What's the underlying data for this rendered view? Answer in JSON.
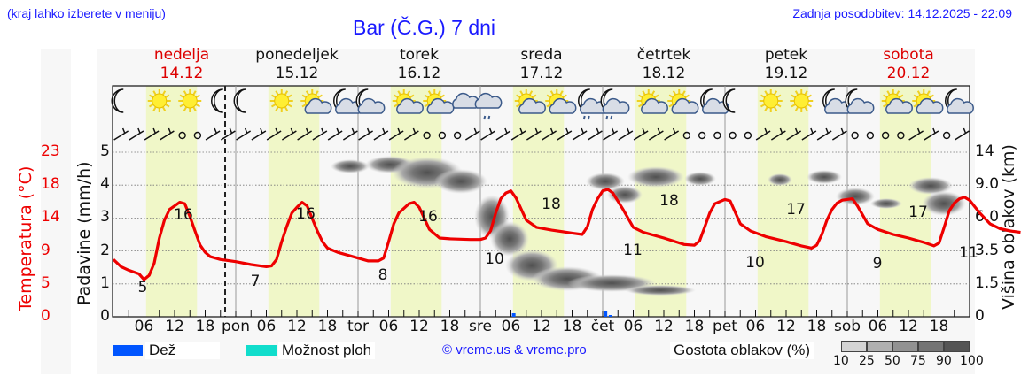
{
  "header": {
    "region_note": "(kraj lahko izberete v meniju)",
    "title": "Bar (Č.G.) 7 dni",
    "last_update": "Zadnja posodobitev: 14.12.2025 - 22:09"
  },
  "days": [
    {
      "name": "nedelja",
      "date": "14.12",
      "weekend": true
    },
    {
      "name": "ponedeljek",
      "date": "15.12",
      "weekend": false
    },
    {
      "name": "torek",
      "date": "16.12",
      "weekend": false
    },
    {
      "name": "sreda",
      "date": "17.12",
      "weekend": false
    },
    {
      "name": "četrtek",
      "date": "18.12",
      "weekend": false
    },
    {
      "name": "petek",
      "date": "19.12",
      "weekend": false
    },
    {
      "name": "sobota",
      "date": "20.12",
      "weekend": true
    }
  ],
  "axes": {
    "temp_label": "Temperatura (°C)",
    "temp_ticks": [
      "0",
      "5",
      "9",
      "14",
      "18",
      "23"
    ],
    "rain_label": "Padavine (mm/h)",
    "rain_ticks": [
      "0",
      "1",
      "2",
      "3",
      "4",
      "5"
    ],
    "cloud_label": "Višina oblakov (km)",
    "cloud_ticks": [
      "0",
      "1.5",
      "3.5",
      "6.0",
      "9.0",
      "14"
    ],
    "x_ticks": [
      "06",
      "12",
      "18",
      "pon",
      "06",
      "12",
      "18",
      "tor",
      "06",
      "12",
      "18",
      "sre",
      "06",
      "12",
      "18",
      "čet",
      "06",
      "12",
      "18",
      "pet",
      "06",
      "12",
      "18",
      "sob",
      "06",
      "12",
      "18"
    ]
  },
  "weather_icons": [
    "moon",
    "sun",
    "sun",
    "moon",
    "moon",
    "sun",
    "sun-cloud",
    "moon-cloud",
    "moon-cloud",
    "sun-cloud",
    "sun-cloud",
    "cloud",
    "cloud-rain",
    "sun-cloud",
    "sun-cloud",
    "moon-cloud-rain",
    "moon-cloud-rain",
    "sun-cloud",
    "sun-cloud",
    "moon-cloud",
    "moon",
    "sun",
    "sun",
    "moon-cloud",
    "moon-cloud",
    "sun-cloud",
    "sun-cloud",
    "moon-cloud"
  ],
  "legend": {
    "rain_label": "Dež",
    "rain_color": "#0055ff",
    "shower_label": "Možnost ploh",
    "shower_color": "#11ddcc",
    "credit": "© vreme.us & vreme.pro",
    "density_label": "Gostota oblakov (%)",
    "density_ticks": [
      "10",
      "25",
      "50",
      "75",
      "90",
      "100"
    ],
    "density_colors": [
      "#d4d4d4",
      "#b0b0b0",
      "#929292",
      "#747474",
      "#555555"
    ]
  },
  "colors": {
    "temperature_line": "#ee0000",
    "daylight_band": "#f0f7c8",
    "title_blue": "#1a1aff",
    "weekend_red": "#dd0000"
  },
  "chart_data": {
    "type": "line",
    "title": "Bar (Č.G.) 7 dni",
    "xlabel": "",
    "ylabel": "Temperatura (°C)",
    "ylim": [
      0,
      23
    ],
    "grid": true,
    "series": [
      {
        "name": "Temperatura (°C)",
        "x": [
          "14.12 00",
          "14.12 03",
          "14.12 06",
          "14.12 09",
          "14.12 12",
          "14.12 15",
          "14.12 18",
          "14.12 21",
          "15.12 00",
          "15.12 06",
          "15.12 09",
          "15.12 12",
          "15.12 15",
          "15.12 18",
          "15.12 21",
          "16.12 06",
          "16.12 09",
          "16.12 12",
          "16.12 15",
          "16.12 18",
          "17.12 06",
          "17.12 09",
          "17.12 12",
          "17.12 15",
          "17.12 18",
          "18.12 06",
          "18.12 09",
          "18.12 12",
          "18.12 15",
          "18.12 18",
          "19.12 06",
          "19.12 09",
          "19.12 12",
          "19.12 15",
          "19.12 18",
          "20.12 06",
          "20.12 09",
          "20.12 12",
          "20.12 15",
          "20.12 18",
          "20.12 24"
        ],
        "values": [
          8,
          6.5,
          5,
          12,
          16,
          15.5,
          10,
          8,
          7.5,
          7,
          11,
          16,
          16,
          11,
          9,
          8,
          13,
          16,
          15,
          11,
          10,
          15,
          18,
          16,
          12,
          11,
          16,
          18,
          17.5,
          12,
          10,
          15,
          17,
          16,
          12,
          9,
          15,
          17,
          16,
          12,
          11
        ]
      }
    ],
    "annotations": {
      "daily_min": [
        5,
        7,
        8,
        10,
        11,
        10,
        9
      ],
      "daily_max": [
        16,
        16,
        16,
        18,
        18,
        17,
        17
      ],
      "final_value": 11
    },
    "precipitation": {
      "ylabel": "Padavine (mm/h)",
      "ylim": [
        0,
        5
      ],
      "events": [
        {
          "time": "17.12 06",
          "value": 0.1,
          "type": "Dež"
        },
        {
          "time": "18.12 00",
          "value": 0.2,
          "type": "Dež"
        }
      ]
    },
    "cloud_height_axis": {
      "label": "Višina oblakov (km)",
      "ticks": [
        0,
        1.5,
        3.5,
        6.0,
        9.0,
        14
      ]
    },
    "legend": [
      "Dež",
      "Možnost ploh",
      "Gostota oblakov (%)"
    ]
  }
}
